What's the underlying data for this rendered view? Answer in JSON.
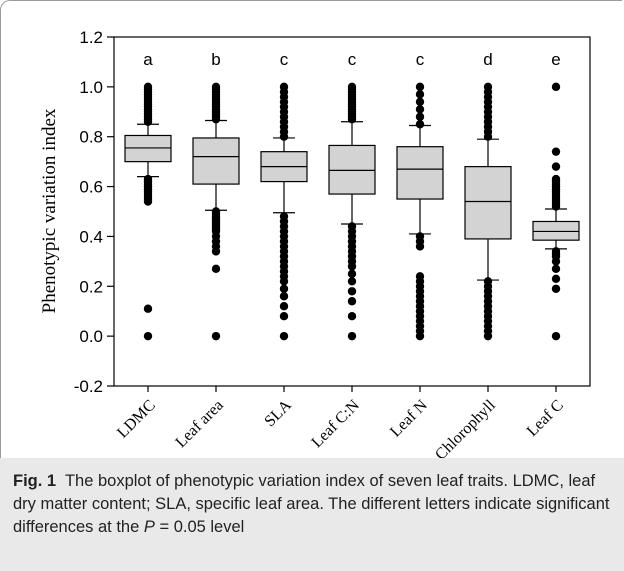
{
  "chart_data": {
    "type": "boxplot",
    "ylabel": "Phenotypic variation index",
    "xlabel": "",
    "ylim": [
      -0.2,
      1.2
    ],
    "yticks": [
      "-0.2",
      "0.0",
      "0.2",
      "0.4",
      "0.6",
      "0.8",
      "1.0",
      "1.2"
    ],
    "categories": [
      "LDMC",
      "Leaf area",
      "SLA",
      "Leaf C:N",
      "Leaf N",
      "Chlorophyll",
      "Leaf C"
    ],
    "letters": [
      "a",
      "b",
      "c",
      "c",
      "c",
      "d",
      "e"
    ],
    "boxes": [
      {
        "q1": 0.7,
        "median": 0.755,
        "q3": 0.805,
        "whisker_low": 0.64,
        "whisker_high": 0.85,
        "outliers": [
          0.0,
          0.11,
          0.54,
          0.55,
          0.56,
          0.57,
          0.58,
          0.59,
          0.6,
          0.61,
          0.62,
          0.63,
          0.86,
          0.87,
          0.88,
          0.89,
          0.9,
          0.91,
          0.92,
          0.93,
          0.94,
          0.95,
          0.96,
          0.97,
          0.98,
          0.99,
          1.0
        ]
      },
      {
        "q1": 0.61,
        "median": 0.72,
        "q3": 0.795,
        "whisker_low": 0.505,
        "whisker_high": 0.865,
        "outliers": [
          0.0,
          0.27,
          0.34,
          0.36,
          0.38,
          0.4,
          0.42,
          0.43,
          0.44,
          0.45,
          0.46,
          0.47,
          0.48,
          0.49,
          0.5,
          0.87,
          0.88,
          0.89,
          0.9,
          0.91,
          0.92,
          0.93,
          0.94,
          0.95,
          0.96,
          0.97,
          0.98,
          0.99,
          1.0
        ]
      },
      {
        "q1": 0.62,
        "median": 0.68,
        "q3": 0.74,
        "whisker_low": 0.495,
        "whisker_high": 0.795,
        "outliers": [
          0.0,
          0.08,
          0.12,
          0.16,
          0.19,
          0.22,
          0.24,
          0.26,
          0.28,
          0.3,
          0.32,
          0.34,
          0.36,
          0.38,
          0.4,
          0.42,
          0.44,
          0.46,
          0.48,
          0.8,
          0.82,
          0.84,
          0.86,
          0.88,
          0.9,
          0.92,
          0.94,
          0.96,
          0.98,
          1.0
        ]
      },
      {
        "q1": 0.57,
        "median": 0.665,
        "q3": 0.765,
        "whisker_low": 0.45,
        "whisker_high": 0.86,
        "outliers": [
          0.0,
          0.08,
          0.14,
          0.18,
          0.22,
          0.25,
          0.28,
          0.3,
          0.32,
          0.34,
          0.36,
          0.38,
          0.4,
          0.42,
          0.44,
          0.87,
          0.88,
          0.89,
          0.9,
          0.91,
          0.92,
          0.93,
          0.94,
          0.95,
          0.96,
          0.97,
          0.98,
          0.99,
          1.0
        ]
      },
      {
        "q1": 0.55,
        "median": 0.67,
        "q3": 0.76,
        "whisker_low": 0.41,
        "whisker_high": 0.845,
        "outliers": [
          0.0,
          0.02,
          0.04,
          0.06,
          0.08,
          0.1,
          0.12,
          0.14,
          0.16,
          0.18,
          0.2,
          0.22,
          0.24,
          0.36,
          0.38,
          0.4,
          0.85,
          0.88,
          0.91,
          0.94,
          0.97,
          1.0
        ]
      },
      {
        "q1": 0.39,
        "median": 0.54,
        "q3": 0.68,
        "whisker_low": 0.225,
        "whisker_high": 0.79,
        "outliers": [
          0.0,
          0.02,
          0.04,
          0.06,
          0.08,
          0.1,
          0.12,
          0.14,
          0.16,
          0.18,
          0.2,
          0.22,
          0.8,
          0.82,
          0.84,
          0.86,
          0.88,
          0.9,
          0.92,
          0.94,
          0.96,
          0.98,
          1.0
        ]
      },
      {
        "q1": 0.385,
        "median": 0.42,
        "q3": 0.46,
        "whisker_low": 0.35,
        "whisker_high": 0.51,
        "outliers": [
          0.0,
          0.19,
          0.23,
          0.27,
          0.3,
          0.32,
          0.33,
          0.34,
          0.52,
          0.53,
          0.54,
          0.55,
          0.56,
          0.57,
          0.58,
          0.59,
          0.6,
          0.61,
          0.62,
          0.63,
          0.68,
          0.74,
          1.0
        ]
      }
    ],
    "box_fill": "#d3d3d3",
    "grid": false
  },
  "caption": {
    "fig_label": "Fig. 1",
    "text_1": "The boxplot of phenotypic variation index of seven leaf traits. LDMC, leaf dry matter content; SLA, specific leaf area. The different letters indicate significant differences at the ",
    "p_symbol": "P",
    "text_2": " = 0.05 level"
  }
}
